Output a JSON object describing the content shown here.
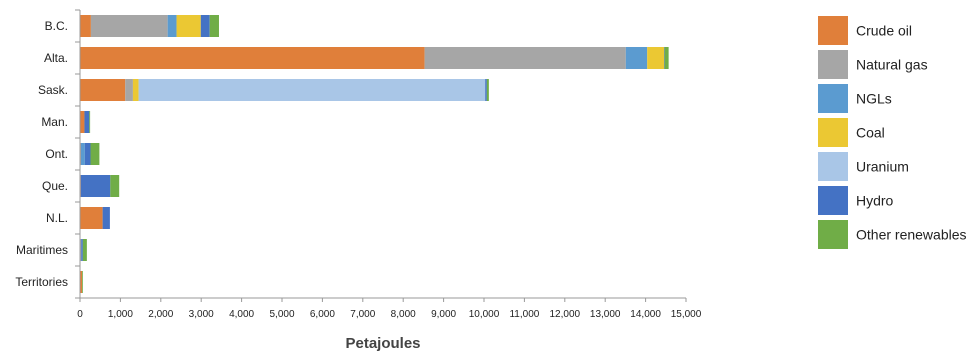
{
  "chart_data": {
    "type": "bar",
    "orientation": "horizontal",
    "stacked": true,
    "title": "",
    "xlabel": "Petajoules",
    "ylabel": "",
    "xlim": [
      0,
      15000
    ],
    "x_ticks": [
      0,
      1000,
      2000,
      3000,
      4000,
      5000,
      6000,
      7000,
      8000,
      9000,
      10000,
      11000,
      12000,
      13000,
      14000,
      15000
    ],
    "x_tick_labels": [
      "0",
      "1,000",
      "2,000",
      "3,000",
      "4,000",
      "5,000",
      "6,000",
      "7,000",
      "8,000",
      "9,000",
      "10,000",
      "11,000",
      "12,000",
      "13,000",
      "14,000",
      "15,000"
    ],
    "grid": false,
    "legend_position": "right",
    "categories": [
      "B.C.",
      "Alta.",
      "Sask.",
      "Man.",
      "Ont.",
      "Que.",
      "N.L.",
      "Maritimes",
      "Territories"
    ],
    "series": [
      {
        "name": "Crude oil",
        "color": "#e07f3a",
        "values": [
          270,
          8530,
          1120,
          110,
          20,
          20,
          560,
          10,
          50
        ]
      },
      {
        "name": "Natural gas",
        "color": "#a6a6a6",
        "values": [
          1900,
          4980,
          190,
          0,
          0,
          0,
          0,
          20,
          0
        ]
      },
      {
        "name": "NGLs",
        "color": "#5b9bd0",
        "values": [
          220,
          530,
          0,
          0,
          100,
          0,
          0,
          0,
          0
        ]
      },
      {
        "name": "Coal",
        "color": "#ebc833",
        "values": [
          600,
          420,
          140,
          0,
          0,
          0,
          0,
          0,
          0
        ]
      },
      {
        "name": "Uranium",
        "color": "#a9c6e7",
        "values": [
          0,
          0,
          8580,
          0,
          0,
          0,
          0,
          0,
          0
        ]
      },
      {
        "name": "Hydro",
        "color": "#4472c4",
        "values": [
          220,
          10,
          40,
          120,
          140,
          730,
          180,
          40,
          0
        ]
      },
      {
        "name": "Other renewables",
        "color": "#70ad47",
        "values": [
          230,
          100,
          50,
          20,
          220,
          220,
          0,
          100,
          10
        ]
      }
    ]
  }
}
